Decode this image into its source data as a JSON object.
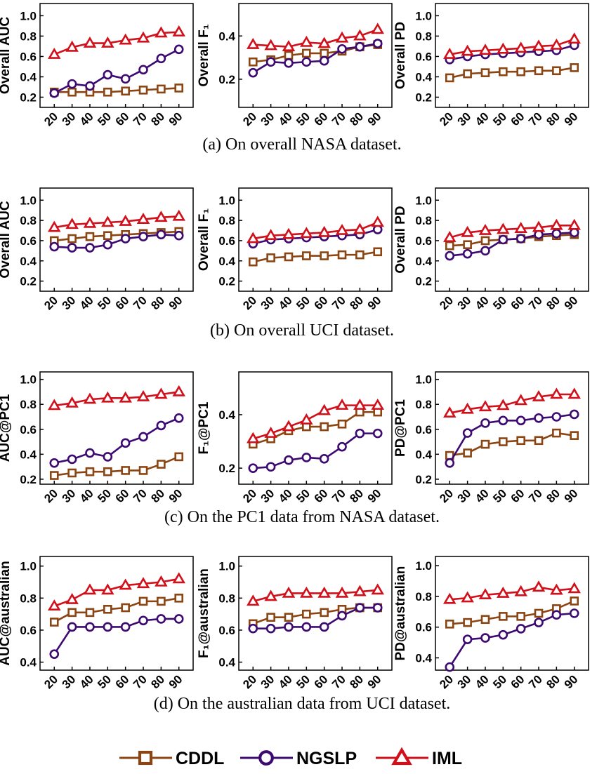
{
  "legend": [
    {
      "name": "CDDL",
      "color": "#8b4513",
      "marker": "square"
    },
    {
      "name": "NGSLP",
      "color": "#3c0a70",
      "marker": "circle"
    },
    {
      "name": "IML",
      "color": "#d0101a",
      "marker": "triangle"
    }
  ],
  "captions": [
    "(a)  On overall NASA dataset.",
    "(b)  On overall UCI dataset.",
    "(c)  On the PC1 data from NASA dataset.",
    "(d)  On the australian data from UCI dataset."
  ],
  "chart_data": [
    {
      "type": "line",
      "ylabel": "Overall AUC",
      "x": [
        20,
        30,
        40,
        50,
        60,
        70,
        80,
        90
      ],
      "xlim": [
        12,
        98
      ],
      "xticks": [
        20,
        30,
        40,
        50,
        60,
        70,
        80,
        90
      ],
      "ylim": [
        0.1,
        1.12
      ],
      "yticks": [
        0.2,
        0.4,
        0.6,
        0.8,
        {
          "value": 1,
          "label": "1.0"
        }
      ],
      "series": [
        {
          "values": [
            0.25,
            0.25,
            0.25,
            0.25,
            0.26,
            0.27,
            0.28,
            0.29
          ]
        },
        {
          "values": [
            0.24,
            0.33,
            0.31,
            0.42,
            0.38,
            0.47,
            0.58,
            0.67
          ]
        },
        {
          "values": [
            0.62,
            0.69,
            0.73,
            0.73,
            0.76,
            0.78,
            0.83,
            0.84
          ]
        }
      ]
    },
    {
      "type": "line",
      "ylabel": "Overall F₁",
      "x": [
        20,
        30,
        40,
        50,
        60,
        70,
        80,
        90
      ],
      "xlim": [
        12,
        98
      ],
      "xticks": [
        20,
        30,
        40,
        50,
        60,
        70,
        80,
        90
      ],
      "ylim": [
        0.07,
        0.55
      ],
      "yticks": [
        0.2,
        0.4
      ],
      "series": [
        {
          "values": [
            0.28,
            0.29,
            0.31,
            0.32,
            0.32,
            0.33,
            0.35,
            0.36
          ]
        },
        {
          "values": [
            0.23,
            0.28,
            0.275,
            0.28,
            0.285,
            0.34,
            0.35,
            0.365
          ]
        },
        {
          "values": [
            0.36,
            0.355,
            0.35,
            0.37,
            0.365,
            0.39,
            0.4,
            0.43
          ]
        }
      ]
    },
    {
      "type": "line",
      "ylabel": "Overall PD",
      "x": [
        20,
        30,
        40,
        50,
        60,
        70,
        80,
        90
      ],
      "xlim": [
        12,
        98
      ],
      "xticks": [
        20,
        30,
        40,
        50,
        60,
        70,
        80,
        90
      ],
      "ylim": [
        0.1,
        1.12
      ],
      "yticks": [
        0.2,
        0.4,
        0.6,
        0.8,
        {
          "value": 1,
          "label": "1.0"
        }
      ],
      "series": [
        {
          "values": [
            0.39,
            0.43,
            0.44,
            0.45,
            0.45,
            0.46,
            0.46,
            0.49
          ]
        },
        {
          "values": [
            0.57,
            0.6,
            0.62,
            0.63,
            0.64,
            0.65,
            0.66,
            0.71
          ]
        },
        {
          "values": [
            0.62,
            0.65,
            0.66,
            0.67,
            0.68,
            0.7,
            0.71,
            0.77
          ]
        }
      ]
    },
    {
      "type": "line",
      "ylabel": "Overall AUC",
      "x": [
        20,
        30,
        40,
        50,
        60,
        70,
        80,
        90
      ],
      "xlim": [
        12,
        98
      ],
      "xticks": [
        20,
        30,
        40,
        50,
        60,
        70,
        80,
        90
      ],
      "ylim": [
        0.1,
        1.12
      ],
      "yticks": [
        0.2,
        0.4,
        0.6,
        0.8,
        {
          "value": 1,
          "label": "1.0"
        }
      ],
      "series": [
        {
          "values": [
            0.6,
            0.62,
            0.64,
            0.65,
            0.66,
            0.67,
            0.68,
            0.69
          ]
        },
        {
          "values": [
            0.54,
            0.53,
            0.53,
            0.56,
            0.62,
            0.64,
            0.66,
            0.65
          ]
        },
        {
          "values": [
            0.73,
            0.76,
            0.77,
            0.78,
            0.79,
            0.81,
            0.83,
            0.84
          ]
        }
      ]
    },
    {
      "type": "line",
      "ylabel": "Overall F₁",
      "x": [
        20,
        30,
        40,
        50,
        60,
        70,
        80,
        90
      ],
      "xlim": [
        12,
        98
      ],
      "xticks": [
        20,
        30,
        40,
        50,
        60,
        70,
        80,
        90
      ],
      "ylim": [
        0.1,
        1.12
      ],
      "yticks": [
        0.2,
        0.4,
        0.6,
        0.8,
        {
          "value": 1,
          "label": "1.0"
        }
      ],
      "series": [
        {
          "values": [
            0.39,
            0.43,
            0.44,
            0.45,
            0.45,
            0.46,
            0.46,
            0.49
          ]
        },
        {
          "values": [
            0.57,
            0.61,
            0.62,
            0.63,
            0.64,
            0.65,
            0.66,
            0.71
          ]
        },
        {
          "values": [
            0.62,
            0.65,
            0.66,
            0.67,
            0.68,
            0.7,
            0.71,
            0.78
          ]
        }
      ]
    },
    {
      "type": "line",
      "ylabel": "Overall PD",
      "x": [
        20,
        30,
        40,
        50,
        60,
        70,
        80,
        90
      ],
      "xlim": [
        12,
        98
      ],
      "xticks": [
        20,
        30,
        40,
        50,
        60,
        70,
        80,
        90
      ],
      "ylim": [
        0.1,
        1.12
      ],
      "yticks": [
        0.2,
        0.4,
        0.6,
        0.8,
        {
          "value": 1,
          "label": "1.0"
        }
      ],
      "series": [
        {
          "values": [
            0.55,
            0.56,
            0.6,
            0.61,
            0.62,
            0.64,
            0.65,
            0.66
          ]
        },
        {
          "values": [
            0.45,
            0.47,
            0.5,
            0.61,
            0.62,
            0.66,
            0.67,
            0.68
          ]
        },
        {
          "values": [
            0.63,
            0.68,
            0.7,
            0.71,
            0.72,
            0.73,
            0.75,
            0.75
          ]
        }
      ]
    },
    {
      "type": "line",
      "ylabel": "AUC@PC1",
      "x": [
        20,
        30,
        40,
        50,
        60,
        70,
        80,
        90
      ],
      "xlim": [
        12,
        98
      ],
      "xticks": [
        20,
        30,
        40,
        50,
        60,
        70,
        80,
        90
      ],
      "ylim": [
        0.16,
        1.06
      ],
      "yticks": [
        0.2,
        0.4,
        0.6,
        0.8,
        {
          "value": 1,
          "label": "1.0"
        }
      ],
      "series": [
        {
          "values": [
            0.23,
            0.25,
            0.26,
            0.26,
            0.27,
            0.27,
            0.32,
            0.38
          ]
        },
        {
          "values": [
            0.33,
            0.36,
            0.41,
            0.38,
            0.49,
            0.54,
            0.63,
            0.69
          ]
        },
        {
          "values": [
            0.79,
            0.81,
            0.84,
            0.85,
            0.85,
            0.86,
            0.88,
            0.9
          ]
        }
      ]
    },
    {
      "type": "line",
      "ylabel": "F₁@PC1",
      "x": [
        20,
        30,
        40,
        50,
        60,
        70,
        80,
        90
      ],
      "xlim": [
        12,
        98
      ],
      "xticks": [
        20,
        30,
        40,
        50,
        60,
        70,
        80,
        90
      ],
      "ylim": [
        0.14,
        0.56
      ],
      "yticks": [
        0.2,
        0.4
      ],
      "series": [
        {
          "values": [
            0.29,
            0.31,
            0.34,
            0.355,
            0.355,
            0.365,
            0.41,
            0.41
          ]
        },
        {
          "values": [
            0.2,
            0.205,
            0.23,
            0.24,
            0.235,
            0.28,
            0.33,
            0.33
          ]
        },
        {
          "values": [
            0.31,
            0.33,
            0.355,
            0.38,
            0.415,
            0.435,
            0.435,
            0.435
          ]
        }
      ]
    },
    {
      "type": "line",
      "ylabel": "PD@PC1",
      "x": [
        20,
        30,
        40,
        50,
        60,
        70,
        80,
        90
      ],
      "xlim": [
        12,
        98
      ],
      "xticks": [
        20,
        30,
        40,
        50,
        60,
        70,
        80,
        90
      ],
      "ylim": [
        0.16,
        1.06
      ],
      "yticks": [
        0.2,
        0.4,
        0.6,
        0.8,
        {
          "value": 1,
          "label": "1.0"
        }
      ],
      "series": [
        {
          "values": [
            0.39,
            0.41,
            0.48,
            0.5,
            0.51,
            0.51,
            0.57,
            0.55
          ]
        },
        {
          "values": [
            0.33,
            0.57,
            0.65,
            0.67,
            0.67,
            0.69,
            0.7,
            0.72
          ]
        },
        {
          "values": [
            0.73,
            0.76,
            0.78,
            0.79,
            0.83,
            0.86,
            0.88,
            0.88
          ]
        }
      ]
    },
    {
      "type": "line",
      "ylabel": "AUC@australian",
      "x": [
        20,
        30,
        40,
        50,
        60,
        70,
        80,
        90
      ],
      "xlim": [
        12,
        98
      ],
      "xticks": [
        20,
        30,
        40,
        50,
        60,
        70,
        80,
        90
      ],
      "ylim": [
        0.35,
        1.06
      ],
      "yticks": [
        0.4,
        0.6,
        0.8,
        {
          "value": 1,
          "label": "1.0"
        }
      ],
      "series": [
        {
          "values": [
            0.65,
            0.71,
            0.71,
            0.73,
            0.74,
            0.78,
            0.78,
            0.8
          ]
        },
        {
          "values": [
            0.45,
            0.62,
            0.62,
            0.62,
            0.62,
            0.66,
            0.67,
            0.67
          ]
        },
        {
          "values": [
            0.75,
            0.79,
            0.85,
            0.85,
            0.88,
            0.89,
            0.9,
            0.92
          ]
        }
      ]
    },
    {
      "type": "line",
      "ylabel": "F₁@australian",
      "x": [
        20,
        30,
        40,
        50,
        60,
        70,
        80,
        90
      ],
      "xlim": [
        12,
        98
      ],
      "xticks": [
        20,
        30,
        40,
        50,
        60,
        70,
        80,
        90
      ],
      "ylim": [
        0.35,
        1.06
      ],
      "yticks": [
        0.4,
        0.6,
        0.8,
        {
          "value": 1,
          "label": "1.0"
        }
      ],
      "series": [
        {
          "values": [
            0.64,
            0.68,
            0.68,
            0.7,
            0.71,
            0.73,
            0.74,
            0.74
          ]
        },
        {
          "values": [
            0.61,
            0.61,
            0.62,
            0.62,
            0.62,
            0.69,
            0.74,
            0.74
          ]
        },
        {
          "values": [
            0.78,
            0.81,
            0.83,
            0.83,
            0.83,
            0.83,
            0.84,
            0.85
          ]
        }
      ]
    },
    {
      "type": "line",
      "ylabel": "PD@australian",
      "x": [
        20,
        30,
        40,
        50,
        60,
        70,
        80,
        90
      ],
      "xlim": [
        12,
        98
      ],
      "xticks": [
        20,
        30,
        40,
        50,
        60,
        70,
        80,
        90
      ],
      "ylim": [
        0.32,
        1.06
      ],
      "yticks": [
        0.4,
        0.6,
        0.8,
        {
          "value": 1,
          "label": "1.0"
        }
      ],
      "series": [
        {
          "values": [
            0.62,
            0.63,
            0.65,
            0.67,
            0.67,
            0.69,
            0.72,
            0.77
          ]
        },
        {
          "values": [
            0.34,
            0.52,
            0.53,
            0.55,
            0.59,
            0.63,
            0.68,
            0.69
          ]
        },
        {
          "values": [
            0.78,
            0.79,
            0.81,
            0.82,
            0.83,
            0.86,
            0.84,
            0.85
          ]
        }
      ]
    }
  ]
}
